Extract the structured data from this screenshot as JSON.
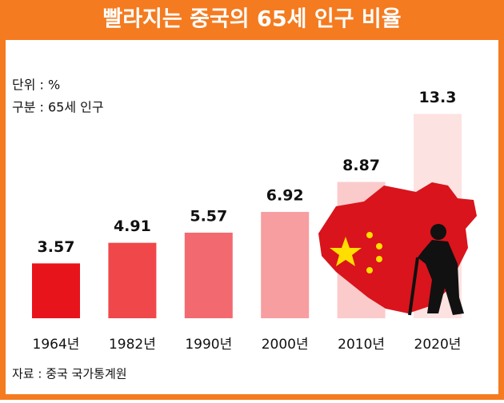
{
  "chart_data": {
    "type": "bar",
    "title": "빨라지는 중국의 65세 인구 비율",
    "unit_note": "단위 : %",
    "category_note": "구분 : 65세 인구",
    "source": "자료 : 중국 국가통계원",
    "categories": [
      "1964년",
      "1982년",
      "1990년",
      "2000년",
      "2010년",
      "2020년"
    ],
    "values": [
      3.57,
      4.91,
      5.57,
      6.92,
      8.87,
      13.3
    ],
    "colors": [
      "#e8141c",
      "#f0474b",
      "#f26a70",
      "#f79ea0",
      "#fbcbcb",
      "#fde2e2"
    ],
    "ylim": [
      0,
      14
    ]
  }
}
